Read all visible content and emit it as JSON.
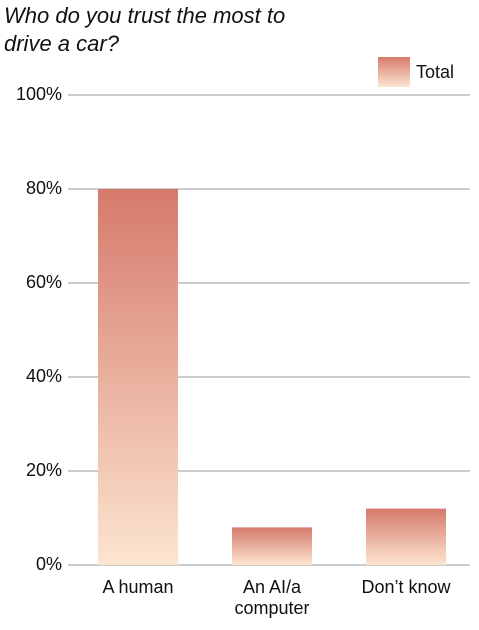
{
  "chart_data": {
    "type": "bar",
    "title": "Who do you trust the most to drive a car?",
    "categories": [
      "A human",
      "An AI/a computer",
      "Don’t know"
    ],
    "series": [
      {
        "name": "Total",
        "color": "#d67a6b",
        "gradient_to": "#fce5d0",
        "values": [
          80,
          8,
          12
        ]
      }
    ],
    "ylim": [
      0,
      100
    ],
    "yticks": [
      {
        "value": 0,
        "label": "0%"
      },
      {
        "value": 20,
        "label": "20%"
      },
      {
        "value": 40,
        "label": "40%"
      },
      {
        "value": 60,
        "label": "60%"
      },
      {
        "value": 80,
        "label": "80%"
      },
      {
        "value": 100,
        "label": "100%"
      }
    ],
    "grid": true,
    "legend": "top-right"
  }
}
